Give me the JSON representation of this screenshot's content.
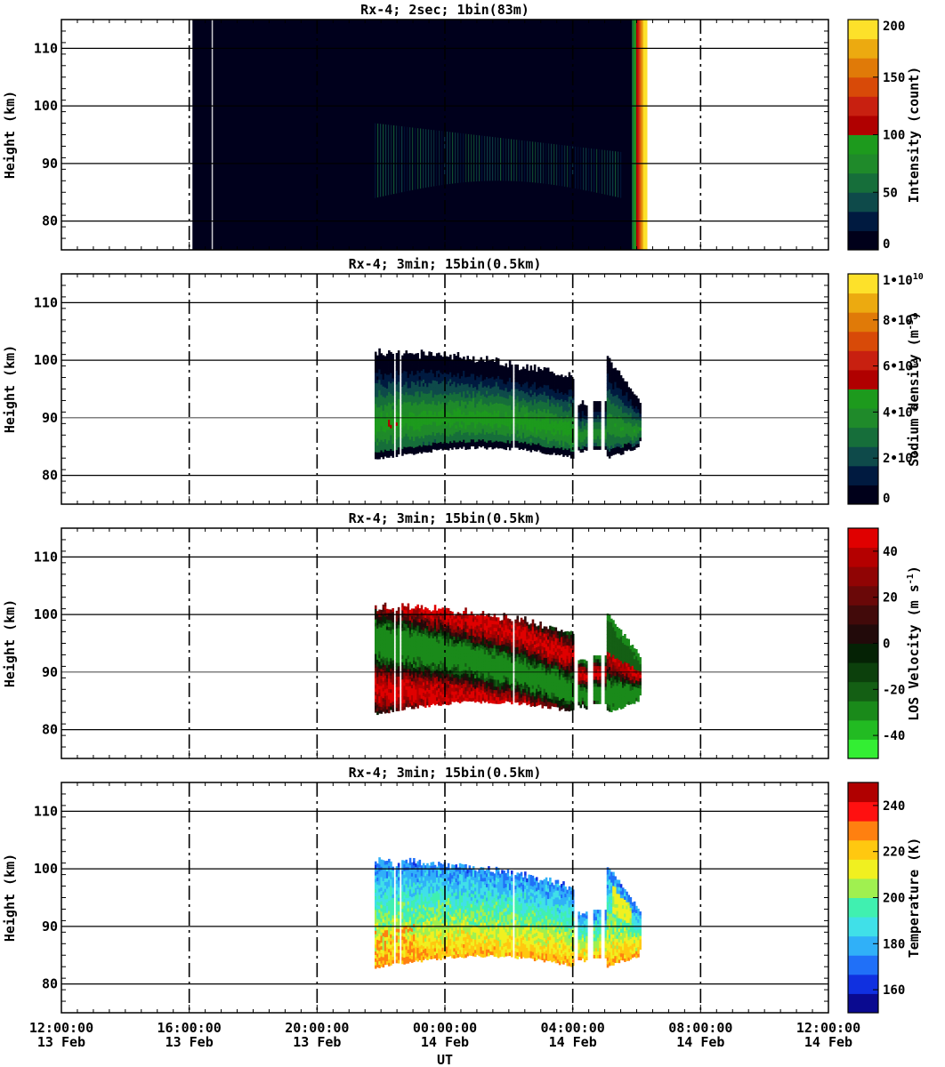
{
  "chart_data": {
    "type": "heatmap",
    "xlabel": "UT",
    "x_ticks": [
      {
        "time": "12:00:00",
        "date": "13 Feb"
      },
      {
        "time": "16:00:00",
        "date": "13 Feb"
      },
      {
        "time": "20:00:00",
        "date": "13 Feb"
      },
      {
        "time": "00:00:00",
        "date": "14 Feb"
      },
      {
        "time": "04:00:00",
        "date": "14 Feb"
      },
      {
        "time": "08:00:00",
        "date": "14 Feb"
      },
      {
        "time": "12:00:00",
        "date": "14 Feb"
      }
    ],
    "xlim_hours_ut": [
      12,
      36
    ],
    "grid": true,
    "panels": [
      {
        "title": "Rx-4;  2sec; 1bin(83m)",
        "ylabel": "Height (km)",
        "ylim": [
          75,
          115
        ],
        "yticks": [
          "80",
          "90",
          "100",
          "110"
        ],
        "colorbar_label": "Intensity (count)",
        "colorbar_ticks": [
          "0",
          "50",
          "100",
          "150",
          "200"
        ],
        "colorbar_range": [
          0,
          200
        ],
        "colors": [
          "#00001a",
          "#001a40",
          "#0e4a4a",
          "#166e3a",
          "#1f8a2a",
          "#1d9a1d",
          "#b00000",
          "#c82010",
          "#d84a08",
          "#e07a08",
          "#ecaa10",
          "#fde12a"
        ],
        "data_extent_hours": [
          16.1,
          30.1
        ]
      },
      {
        "title": "Rx-4; 3min; 15bin(0.5km)",
        "ylabel": "Height (km)",
        "ylim": [
          75,
          115
        ],
        "yticks": [
          "80",
          "90",
          "100",
          "110"
        ],
        "colorbar_label": "Sodium density (m",
        "colorbar_label_sup": "-3",
        "colorbar_label_end": ")",
        "colorbar_ticks": [
          "0",
          "2•10",
          "4•10",
          "6•10",
          "8•10",
          "1•10"
        ],
        "colorbar_tick_sups": [
          "",
          "9",
          "9",
          "9",
          "9",
          "10"
        ],
        "colorbar_range": [
          0,
          10000000000
        ],
        "colors": [
          "#00001a",
          "#001a40",
          "#0e4a4a",
          "#166e3a",
          "#1f8a2a",
          "#1d9a1d",
          "#b00000",
          "#c82010",
          "#d84a08",
          "#e07a08",
          "#ecaa10",
          "#fde12a"
        ],
        "data_extent_hours": [
          21.8,
          30.1
        ]
      },
      {
        "title": "Rx-4; 3min; 15bin(0.5km)",
        "ylabel": "Height (km)",
        "ylim": [
          75,
          115
        ],
        "yticks": [
          "80",
          "90",
          "100",
          "110"
        ],
        "colorbar_label": "LOS Velocity (m s",
        "colorbar_label_sup": "-1",
        "colorbar_label_end": ")",
        "colorbar_ticks": [
          "-40",
          "-20",
          "0",
          "20",
          "40"
        ],
        "colorbar_range": [
          -50,
          50
        ],
        "colors": [
          "#33ee33",
          "#22bb22",
          "#1a8a1a",
          "#145f14",
          "#0c400c",
          "#052205",
          "#220a0a",
          "#420a0a",
          "#6a0808",
          "#900404",
          "#b40000",
          "#e00000"
        ],
        "data_extent_hours": [
          21.8,
          30.1
        ]
      },
      {
        "title": "Rx-4; 3min; 15bin(0.5km)",
        "ylabel": "Height (km)",
        "ylim": [
          75,
          115
        ],
        "yticks": [
          "80",
          "90",
          "100",
          "110"
        ],
        "colorbar_label": "Temperature (K)",
        "colorbar_ticks": [
          "160",
          "180",
          "200",
          "220",
          "240"
        ],
        "colorbar_range": [
          150,
          250
        ],
        "colors": [
          "#0a0a90",
          "#1030e0",
          "#2070f8",
          "#30b0f8",
          "#40e0e8",
          "#40f0b0",
          "#a0f050",
          "#f0f020",
          "#ffc810",
          "#ff8010",
          "#ff1010",
          "#b00000"
        ],
        "data_extent_hours": [
          21.8,
          30.1
        ]
      }
    ]
  }
}
